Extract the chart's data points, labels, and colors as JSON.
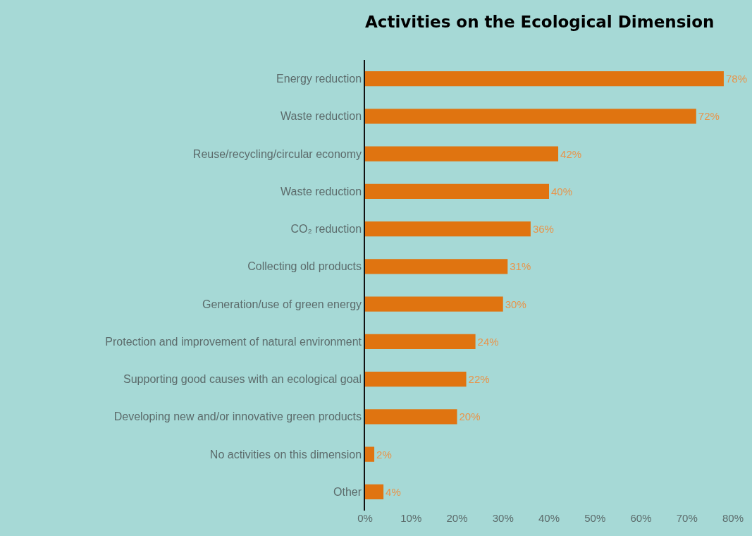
{
  "chart_data": {
    "type": "bar",
    "orientation": "horizontal",
    "title": "Activities on the Ecological Dimension",
    "categories": [
      "Energy reduction",
      "Waste reduction",
      "Reuse/recycling/circular economy",
      "Waste reduction",
      "CO₂ reduction",
      "Collecting old products",
      "Generation/use of green energy",
      "Protection and improvement of natural environment",
      "Supporting good causes with an ecological goal",
      "Developing new and/or innovative green products",
      "No activities on this dimension",
      "Other"
    ],
    "values": [
      78,
      72,
      42,
      40,
      36,
      31,
      30,
      24,
      22,
      20,
      2,
      4
    ],
    "value_labels": [
      "78%",
      "72%",
      "42%",
      "40%",
      "36%",
      "31%",
      "30%",
      "24%",
      "22%",
      "20%",
      "2%",
      "4%"
    ],
    "color": "#e07410",
    "xlim": [
      0,
      80
    ],
    "xticks": [
      {
        "value": 0,
        "label": "0%"
      },
      {
        "value": 10,
        "label": "10%"
      },
      {
        "value": 20,
        "label": "20%"
      },
      {
        "value": 30,
        "label": "30%"
      },
      {
        "value": 40,
        "label": "40%"
      },
      {
        "value": 50,
        "label": "50%"
      },
      {
        "value": 60,
        "label": "60%"
      },
      {
        "value": 70,
        "label": "70%"
      },
      {
        "value": 80,
        "label": "80%"
      }
    ],
    "grid": false,
    "legend": false
  }
}
